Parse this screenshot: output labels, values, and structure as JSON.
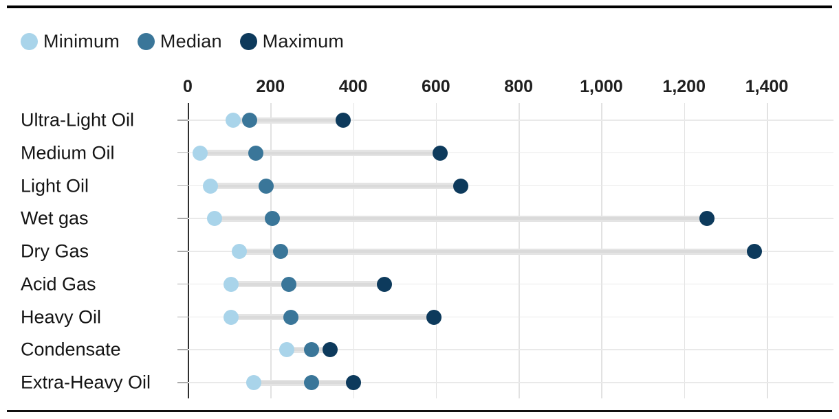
{
  "chart_data": {
    "type": "scatter",
    "subtype": "dumbbell-range-dot-plot",
    "title": "",
    "legend_position": "top-left",
    "grid": true,
    "xlim": [
      0,
      1500
    ],
    "x_ticks": [
      0,
      200,
      400,
      600,
      800,
      1000,
      1200,
      1400
    ],
    "x_tick_labels": [
      "0",
      "200",
      "400",
      "600",
      "800",
      "1,000",
      "1,200",
      "1,400"
    ],
    "categories": [
      "Ultra-Light Oil",
      "Medium Oil",
      "Light Oil",
      "Wet gas",
      "Dry Gas",
      "Acid Gas",
      "Heavy Oil",
      "Condensate",
      "Extra-Heavy Oil"
    ],
    "series": [
      {
        "name": "Minimum",
        "color": "#a9d4ea",
        "values": [
          110,
          30,
          55,
          65,
          125,
          105,
          105,
          240,
          160
        ]
      },
      {
        "name": "Median",
        "color": "#3a7699",
        "values": [
          150,
          165,
          190,
          205,
          225,
          245,
          250,
          300,
          300
        ]
      },
      {
        "name": "Maximum",
        "color": "#0d3a5c",
        "values": [
          375,
          610,
          660,
          1255,
          1370,
          475,
          595,
          345,
          400
        ]
      }
    ]
  },
  "colors": {
    "minimum": "#a9d4ea",
    "median": "#3a7699",
    "maximum": "#0d3a5c",
    "band": "#e4e4e4",
    "band_core": "#dadada",
    "gridline": "#e2e2e2",
    "row_line": "#e9e9e9",
    "axis": "#2e2e2e",
    "text": "#1a1a1a"
  }
}
